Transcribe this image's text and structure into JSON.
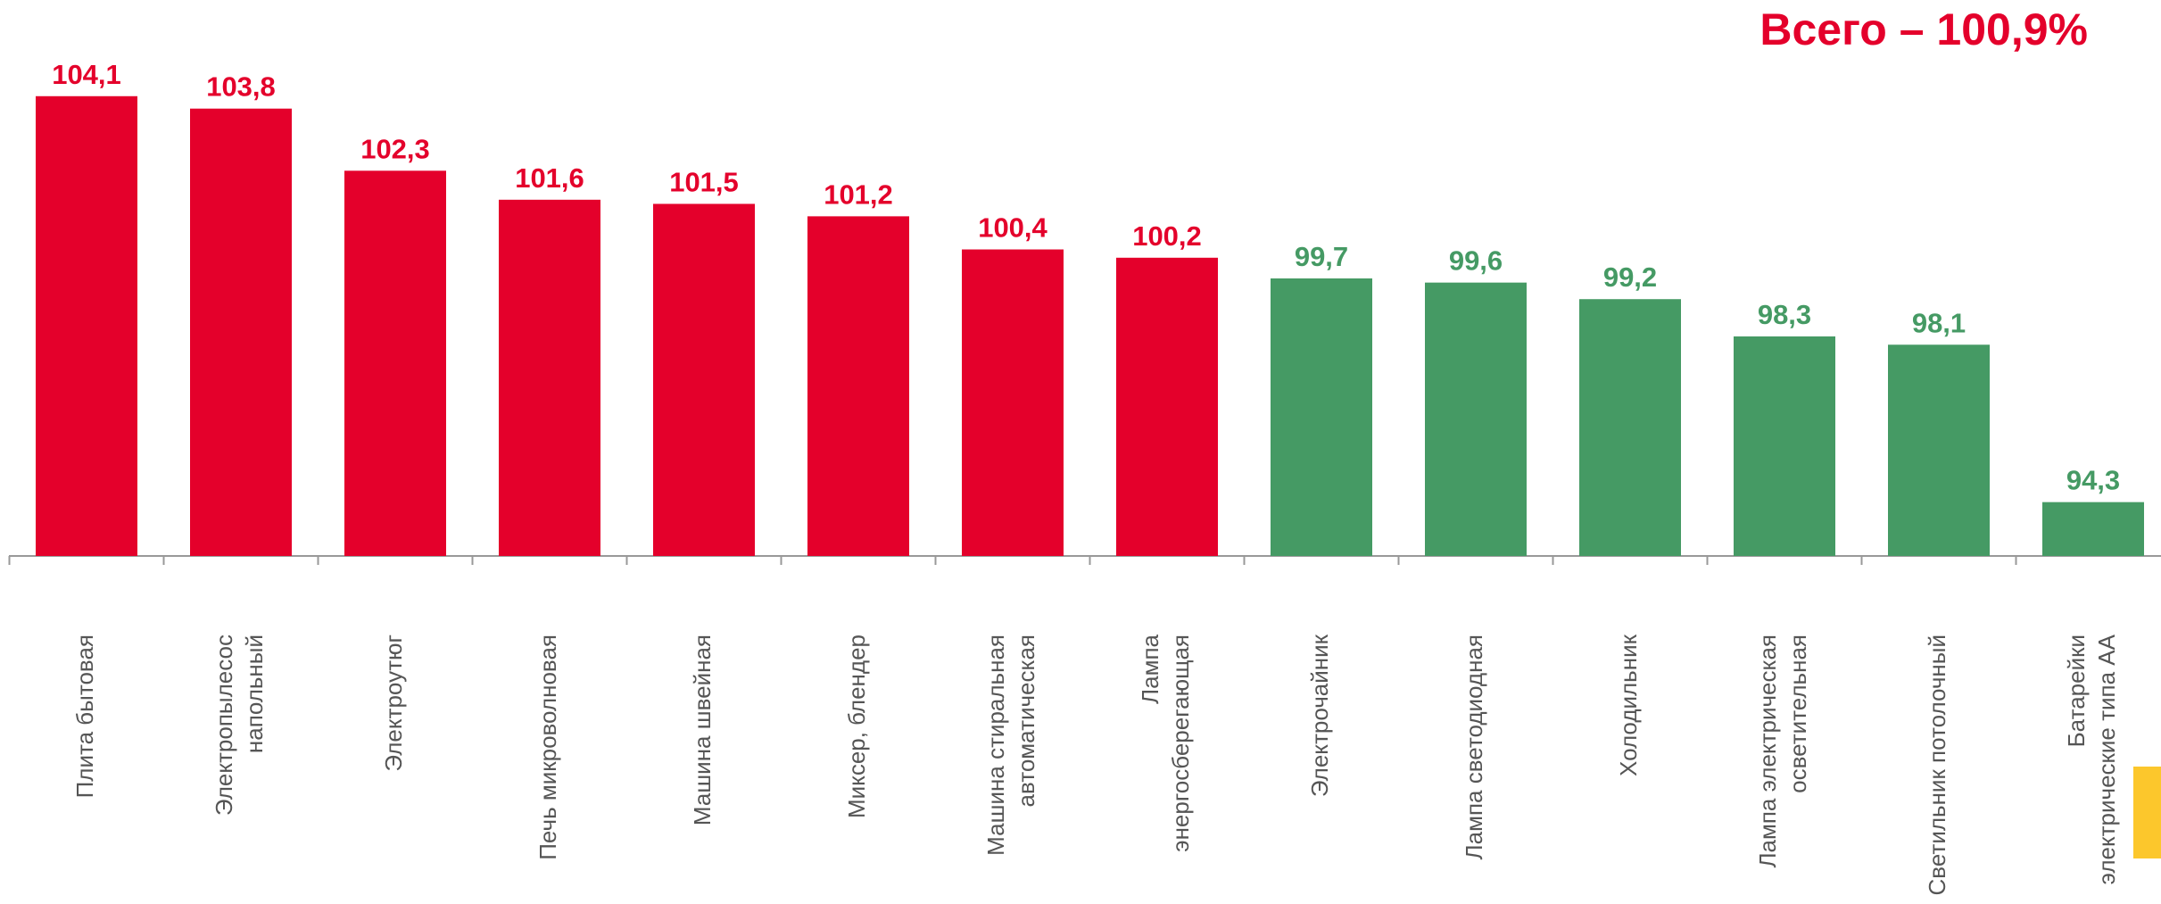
{
  "chart_data": {
    "type": "bar",
    "title": "Всего – 100,9%",
    "categories": [
      [
        "Плита бытовая"
      ],
      [
        "Электропылесос",
        "напольный"
      ],
      [
        "Электроутюг"
      ],
      [
        "Печь микроволновая"
      ],
      [
        "Машина швейная"
      ],
      [
        "Миксер, блендер"
      ],
      [
        "Машина стиральная",
        "автоматическая"
      ],
      [
        "Лампа",
        "энергосберегающая"
      ],
      [
        "Электрочайник"
      ],
      [
        "Лампа светодиодная"
      ],
      [
        "Холодильник"
      ],
      [
        "Лампа электрическая",
        "осветительная"
      ],
      [
        "Светильник потолочный"
      ],
      [
        "Батарейки",
        "электрические типа АА"
      ]
    ],
    "values": [
      104.1,
      103.8,
      102.3,
      101.6,
      101.5,
      101.2,
      100.4,
      100.2,
      99.7,
      99.6,
      99.2,
      98.3,
      98.1,
      94.3
    ],
    "value_labels": [
      "104,1",
      "103,8",
      "102,3",
      "101,6",
      "101,5",
      "101,2",
      "100,4",
      "100,2",
      "99,7",
      "99,6",
      "99,2",
      "98,3",
      "98,1",
      "94,3"
    ],
    "colors": [
      "#e4002b",
      "#e4002b",
      "#e4002b",
      "#e4002b",
      "#e4002b",
      "#e4002b",
      "#e4002b",
      "#e4002b",
      "#459a64",
      "#459a64",
      "#459a64",
      "#459a64",
      "#459a64",
      "#459a64"
    ],
    "ylim": [
      93,
      105
    ]
  }
}
